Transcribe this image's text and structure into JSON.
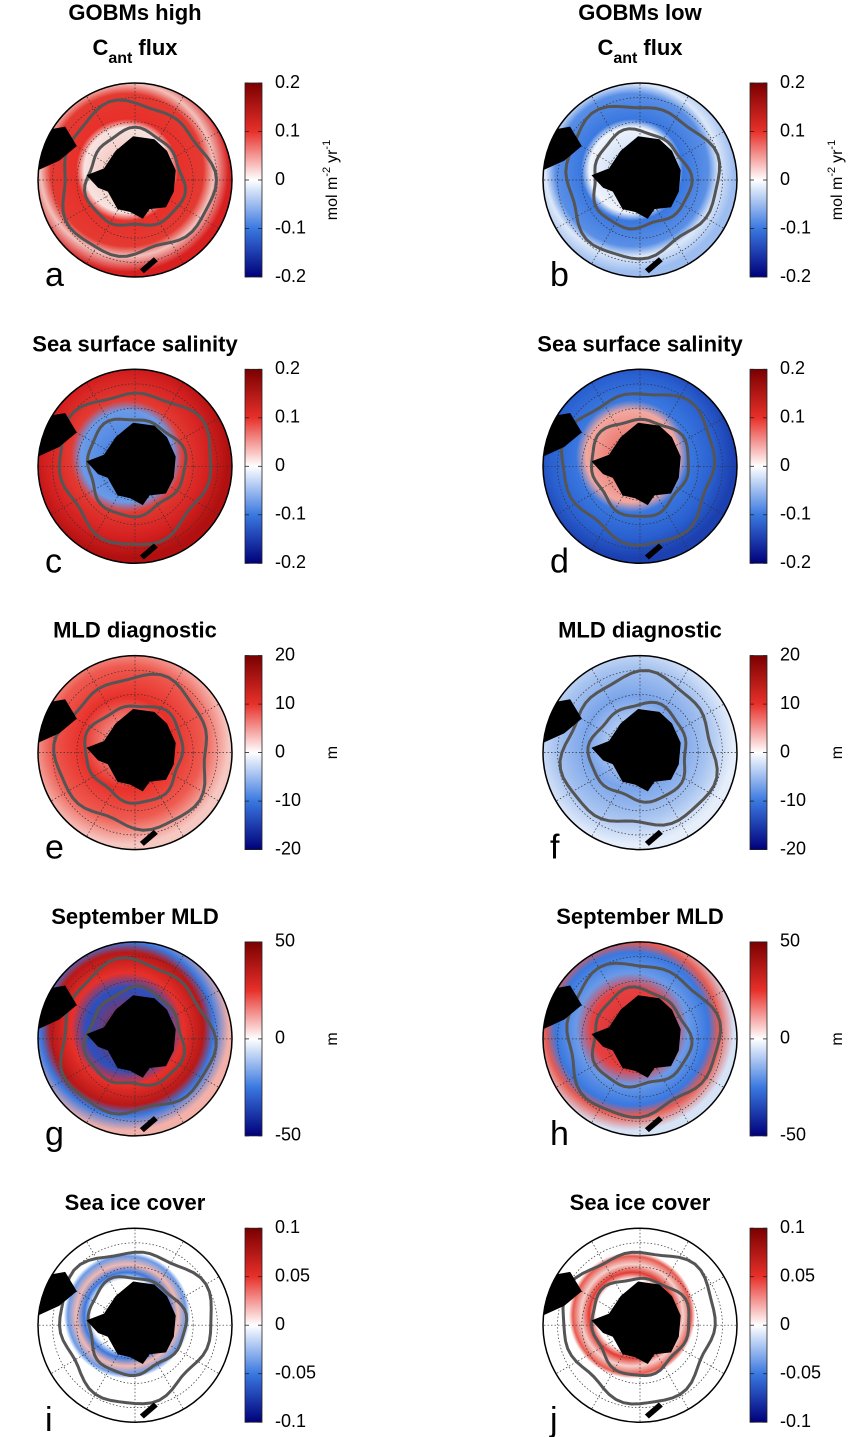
{
  "panels": [
    {
      "label": "a",
      "title": [
        [
          {
            "text": "GOBMs high"
          }
        ],
        [
          {
            "text": "C"
          },
          {
            "text": "ant",
            "sub": true
          },
          {
            "text": "flux"
          }
        ]
      ],
      "colorbar": {
        "lim": [
          -0.2,
          0.2
        ],
        "ticks": [
          0.2,
          0.1,
          0,
          -0.1,
          -0.2
        ],
        "unit": [
          {
            "text": "mol m"
          },
          {
            "text": "-2",
            "sup": true
          },
          {
            "text": "yr"
          },
          {
            "text": "-1",
            "sup": true
          }
        ]
      }
    },
    {
      "label": "b",
      "title": [
        [
          {
            "text": "GOBMs low"
          }
        ],
        [
          {
            "text": "C"
          },
          {
            "text": "ant",
            "sub": true
          },
          {
            "text": "flux"
          }
        ]
      ],
      "colorbar": {
        "lim": [
          -0.2,
          0.2
        ],
        "ticks": [
          0.2,
          0.1,
          0,
          -0.1,
          -0.2
        ],
        "unit": [
          {
            "text": "mol m"
          },
          {
            "text": "-2",
            "sup": true
          },
          {
            "text": "yr"
          },
          {
            "text": "-1",
            "sup": true
          }
        ]
      }
    },
    {
      "label": "c",
      "title": [
        [
          {
            "text": "Sea surface salinity"
          }
        ]
      ],
      "colorbar": {
        "lim": [
          -0.2,
          0.2
        ],
        "ticks": [
          0.2,
          0.1,
          0,
          -0.1,
          -0.2
        ]
      }
    },
    {
      "label": "d",
      "title": [
        [
          {
            "text": "Sea surface salinity"
          }
        ]
      ],
      "colorbar": {
        "lim": [
          -0.2,
          0.2
        ],
        "ticks": [
          0.2,
          0.1,
          0,
          -0.1,
          -0.2
        ]
      }
    },
    {
      "label": "e",
      "title": [
        [
          {
            "text": "MLD diagnostic"
          }
        ]
      ],
      "colorbar": {
        "lim": [
          -20,
          20
        ],
        "ticks": [
          20,
          10,
          0,
          -10,
          -20
        ],
        "unit": [
          {
            "text": "m"
          }
        ]
      }
    },
    {
      "label": "f",
      "title": [
        [
          {
            "text": "MLD diagnostic"
          }
        ]
      ],
      "colorbar": {
        "lim": [
          -20,
          20
        ],
        "ticks": [
          20,
          10,
          0,
          -10,
          -20
        ],
        "unit": [
          {
            "text": "m"
          }
        ]
      }
    },
    {
      "label": "g",
      "title": [
        [
          {
            "text": "September MLD"
          }
        ]
      ],
      "colorbar": {
        "lim": [
          -50,
          50
        ],
        "ticks": [
          50,
          0,
          -50
        ],
        "unit": [
          {
            "text": "m"
          }
        ]
      }
    },
    {
      "label": "h",
      "title": [
        [
          {
            "text": "September MLD"
          }
        ]
      ],
      "colorbar": {
        "lim": [
          -50,
          50
        ],
        "ticks": [
          50,
          0,
          -50
        ],
        "unit": [
          {
            "text": "m"
          }
        ]
      }
    },
    {
      "label": "i",
      "title": [
        [
          {
            "text": "Sea ice cover"
          }
        ]
      ],
      "colorbar": {
        "lim": [
          -0.1,
          0.1
        ],
        "ticks": [
          0.1,
          0.05,
          0,
          -0.05,
          -0.1
        ]
      }
    },
    {
      "label": "j",
      "title": [
        [
          {
            "text": "Sea ice cover"
          }
        ]
      ],
      "colorbar": {
        "lim": [
          -0.1,
          0.1
        ],
        "ticks": [
          0.1,
          0.05,
          0,
          -0.05,
          -0.1
        ]
      }
    }
  ]
}
